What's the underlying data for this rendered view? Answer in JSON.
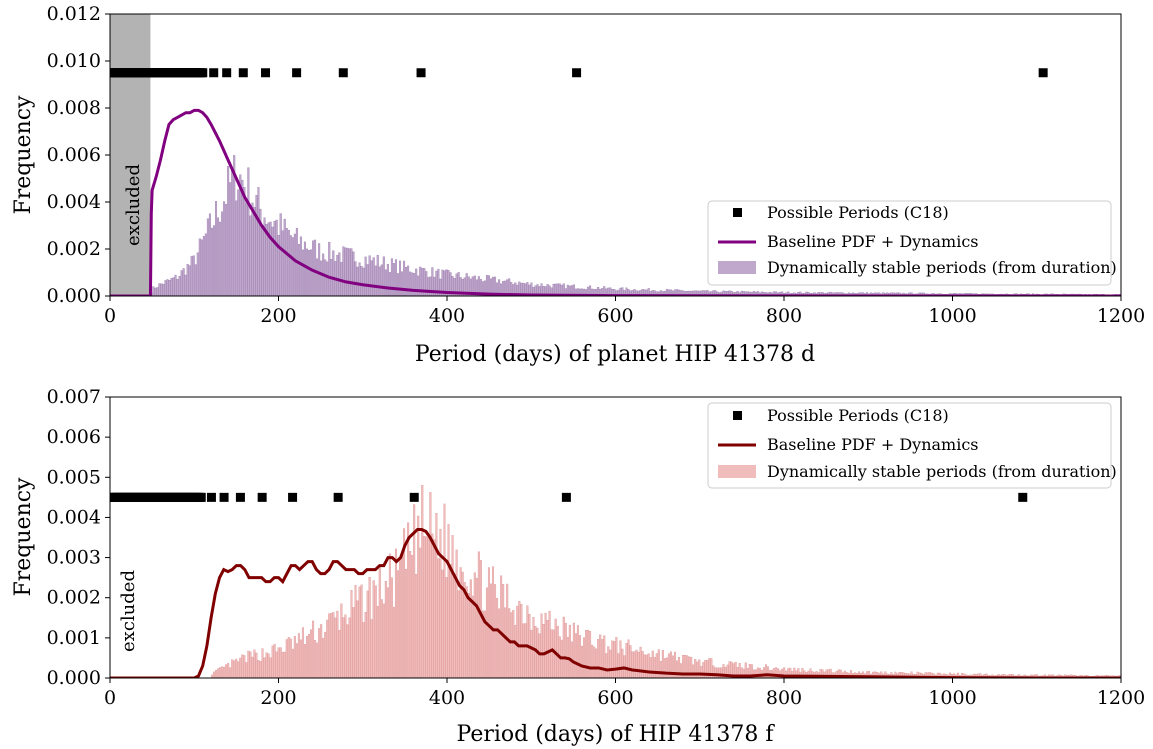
{
  "chart_data": [
    {
      "type": "bar",
      "xlabel": "Period (days) of planet HIP 41378 d",
      "ylabel": "Frequency",
      "xlim": [
        0,
        1200
      ],
      "ylim": [
        0,
        0.012
      ],
      "xticks": [
        0,
        200,
        400,
        600,
        800,
        1000,
        1200
      ],
      "yticks": [
        "0.000",
        "0.002",
        "0.004",
        "0.006",
        "0.008",
        "0.010",
        "0.012"
      ],
      "excluded_region": {
        "x": [
          0,
          48
        ],
        "label": "excluded",
        "color": "#b3b3b3"
      },
      "possible_periods": {
        "label": "Possible Periods (C18)",
        "y": 0.0095,
        "dense_x": [
          1.92,
          3.89,
          5.85,
          7.82,
          9.79,
          11.75,
          13.72,
          15.69,
          17.66,
          19.62,
          21.59,
          23.56,
          25.52,
          27.49,
          29.46,
          31.42,
          33.39,
          35.36,
          37.32,
          39.29,
          41.26,
          43.22,
          45.19,
          47.16,
          49.12,
          51.09,
          53.06,
          55.02,
          56.99,
          58.96,
          60.92,
          62.89,
          64.86,
          66.82,
          68.79,
          70.76,
          72.72,
          74.69,
          76.66,
          78.62,
          80.59,
          82.56,
          84.52,
          86.49,
          88.46,
          90.42,
          92.39,
          94.36,
          96.32,
          98.29,
          100.26,
          102.22,
          104.19,
          106.16,
          108.12,
          110.09
        ],
        "sparse_x": [
          123.1,
          138.5,
          158.2,
          184.6,
          221.5,
          276.9,
          369.2,
          553.8,
          1107.6
        ],
        "color": "#000000"
      },
      "curve": {
        "label": "Baseline PDF + Dynamics",
        "color": "#800080",
        "points": [
          [
            0,
            0
          ],
          [
            48,
            0
          ],
          [
            49,
            0.0035
          ],
          [
            50,
            0.0045
          ],
          [
            55,
            0.0051
          ],
          [
            60,
            0.0058
          ],
          [
            65,
            0.0066
          ],
          [
            70,
            0.0073
          ],
          [
            75,
            0.0075
          ],
          [
            80,
            0.0076
          ],
          [
            85,
            0.0077
          ],
          [
            90,
            0.0078
          ],
          [
            95,
            0.0078
          ],
          [
            100,
            0.0079
          ],
          [
            105,
            0.0079
          ],
          [
            110,
            0.0078
          ],
          [
            115,
            0.0076
          ],
          [
            120,
            0.0073
          ],
          [
            130,
            0.0066
          ],
          [
            140,
            0.0058
          ],
          [
            150,
            0.005
          ],
          [
            160,
            0.0042
          ],
          [
            170,
            0.0036
          ],
          [
            180,
            0.003
          ],
          [
            190,
            0.0025
          ],
          [
            200,
            0.0021
          ],
          [
            220,
            0.0015
          ],
          [
            240,
            0.0011
          ],
          [
            260,
            0.0008
          ],
          [
            280,
            0.0006
          ],
          [
            300,
            0.00048
          ],
          [
            330,
            0.00034
          ],
          [
            360,
            0.00024
          ],
          [
            400,
            0.00015
          ],
          [
            450,
            8e-05
          ],
          [
            500,
            4e-05
          ],
          [
            600,
            1.5e-05
          ],
          [
            800,
            3e-06
          ],
          [
            1200,
            0
          ]
        ]
      },
      "histogram": {
        "label": "Dynamically stable periods (from duration)",
        "color": "#c0a7cc",
        "edge_color": "#8f6fa3",
        "x_start": 48,
        "x_end": 1200,
        "bin_width": 2.4,
        "profile": [
          [
            48,
            0
          ],
          [
            50,
            0.0003
          ],
          [
            60,
            0.0005
          ],
          [
            80,
            0.0008
          ],
          [
            100,
            0.0015
          ],
          [
            120,
            0.003
          ],
          [
            140,
            0.0045
          ],
          [
            150,
            0.0052
          ],
          [
            160,
            0.0048
          ],
          [
            180,
            0.0036
          ],
          [
            200,
            0.003
          ],
          [
            220,
            0.0024
          ],
          [
            250,
            0.0019
          ],
          [
            300,
            0.0016
          ],
          [
            350,
            0.0012
          ],
          [
            400,
            0.0009
          ],
          [
            450,
            0.0007
          ],
          [
            500,
            0.0005
          ],
          [
            600,
            0.0003
          ],
          [
            700,
            0.0002
          ],
          [
            800,
            0.00015
          ],
          [
            1000,
            0.0001
          ],
          [
            1200,
            6e-05
          ]
        ],
        "noise": 0.25
      },
      "legend": {
        "placement": "lower right"
      }
    },
    {
      "type": "bar",
      "xlabel": "Period (days) of HIP 41378 f",
      "ylabel": "Frequency",
      "xlim": [
        0,
        1200
      ],
      "ylim": [
        0,
        0.007
      ],
      "xticks": [
        0,
        200,
        400,
        600,
        800,
        1000,
        1200
      ],
      "yticks": [
        "0.000",
        "0.001",
        "0.002",
        "0.003",
        "0.004",
        "0.005",
        "0.006",
        "0.007"
      ],
      "excluded_label": "excluded",
      "possible_periods": {
        "label": "Possible Periods (C18)",
        "y": 0.0045,
        "dense_x": [
          1.9,
          3.8,
          5.7,
          7.6,
          9.5,
          11.4,
          13.3,
          15.2,
          17.1,
          19.0,
          20.9,
          22.8,
          24.7,
          26.6,
          28.5,
          30.4,
          32.3,
          34.2,
          36.1,
          38.0,
          39.9,
          41.8,
          43.7,
          45.6,
          47.5,
          49.4,
          51.3,
          53.2,
          55.1,
          57.0,
          58.9,
          60.8,
          62.7,
          64.6,
          66.5,
          68.4,
          70.3,
          72.2,
          74.1,
          76.0,
          77.9,
          79.8,
          81.7,
          83.6,
          85.5,
          87.4,
          89.3,
          91.2,
          93.1,
          95.0,
          96.9,
          98.8,
          100.7,
          102.6,
          104.5,
          106.4,
          108.3
        ],
        "sparse_x": [
          120.4,
          135.4,
          154.8,
          180.6,
          216.7,
          270.8,
          361.1,
          541.7,
          1083.4
        ],
        "color": "#000000"
      },
      "curve": {
        "label": "Baseline PDF + Dynamics",
        "color": "#800000",
        "points": [
          [
            0,
            0
          ],
          [
            100,
            0
          ],
          [
            105,
            5e-05
          ],
          [
            110,
            0.0003
          ],
          [
            115,
            0.0008
          ],
          [
            120,
            0.0015
          ],
          [
            125,
            0.0021
          ],
          [
            130,
            0.0025
          ],
          [
            135,
            0.0027
          ],
          [
            140,
            0.00265
          ],
          [
            145,
            0.0027
          ],
          [
            150,
            0.0028
          ],
          [
            155,
            0.0028
          ],
          [
            160,
            0.0027
          ],
          [
            165,
            0.0025
          ],
          [
            170,
            0.0025
          ],
          [
            175,
            0.0025
          ],
          [
            180,
            0.0025
          ],
          [
            185,
            0.0024
          ],
          [
            190,
            0.0024
          ],
          [
            195,
            0.0025
          ],
          [
            200,
            0.0025
          ],
          [
            205,
            0.0024
          ],
          [
            210,
            0.0026
          ],
          [
            215,
            0.0028
          ],
          [
            220,
            0.0028
          ],
          [
            225,
            0.0027
          ],
          [
            230,
            0.0028
          ],
          [
            235,
            0.0029
          ],
          [
            240,
            0.0029
          ],
          [
            245,
            0.0027
          ],
          [
            250,
            0.0026
          ],
          [
            255,
            0.0026
          ],
          [
            260,
            0.0027
          ],
          [
            265,
            0.0029
          ],
          [
            270,
            0.0029
          ],
          [
            275,
            0.0028
          ],
          [
            280,
            0.0027
          ],
          [
            285,
            0.0027
          ],
          [
            290,
            0.0027
          ],
          [
            295,
            0.0026
          ],
          [
            300,
            0.0026
          ],
          [
            305,
            0.0027
          ],
          [
            310,
            0.0027
          ],
          [
            315,
            0.0027
          ],
          [
            320,
            0.0028
          ],
          [
            325,
            0.0028
          ],
          [
            330,
            0.003
          ],
          [
            335,
            0.003
          ],
          [
            340,
            0.0029
          ],
          [
            345,
            0.003
          ],
          [
            350,
            0.0033
          ],
          [
            355,
            0.0035
          ],
          [
            360,
            0.0036
          ],
          [
            365,
            0.0037
          ],
          [
            370,
            0.0037
          ],
          [
            375,
            0.00365
          ],
          [
            380,
            0.0035
          ],
          [
            385,
            0.0033
          ],
          [
            390,
            0.0031
          ],
          [
            395,
            0.003
          ],
          [
            400,
            0.0029
          ],
          [
            405,
            0.0027
          ],
          [
            410,
            0.0025
          ],
          [
            415,
            0.0023
          ],
          [
            420,
            0.0022
          ],
          [
            425,
            0.002
          ],
          [
            430,
            0.0019
          ],
          [
            435,
            0.0018
          ],
          [
            440,
            0.0016
          ],
          [
            445,
            0.0014
          ],
          [
            450,
            0.0013
          ],
          [
            455,
            0.0012
          ],
          [
            460,
            0.0012
          ],
          [
            465,
            0.0011
          ],
          [
            470,
            0.001
          ],
          [
            475,
            0.0009
          ],
          [
            480,
            0.0009
          ],
          [
            485,
            0.0008
          ],
          [
            490,
            0.0008
          ],
          [
            495,
            0.0008
          ],
          [
            500,
            0.00075
          ],
          [
            505,
            0.0007
          ],
          [
            510,
            0.0006
          ],
          [
            515,
            0.0006
          ],
          [
            520,
            0.00065
          ],
          [
            525,
            0.0007
          ],
          [
            530,
            0.0006
          ],
          [
            535,
            0.0005
          ],
          [
            540,
            0.0005
          ],
          [
            545,
            0.00048
          ],
          [
            550,
            0.0004
          ],
          [
            560,
            0.0003
          ],
          [
            570,
            0.00025
          ],
          [
            580,
            0.00025
          ],
          [
            590,
            0.0002
          ],
          [
            600,
            0.00022
          ],
          [
            610,
            0.00025
          ],
          [
            620,
            0.0002
          ],
          [
            640,
            0.00015
          ],
          [
            660,
            0.00012
          ],
          [
            680,
            0.0001
          ],
          [
            700,
            0.0001
          ],
          [
            720,
            8e-05
          ],
          [
            740,
            5e-05
          ],
          [
            760,
            5e-05
          ],
          [
            780,
            8e-05
          ],
          [
            800,
            5e-05
          ],
          [
            850,
            4e-05
          ],
          [
            900,
            3e-05
          ],
          [
            1000,
            1e-05
          ],
          [
            1100,
            0
          ],
          [
            1200,
            0
          ]
        ]
      },
      "histogram": {
        "label": "Dynamically stable periods (from duration)",
        "color": "#f0bcbc",
        "edge_color": "#d98a8a",
        "x_start": 120,
        "x_end": 1200,
        "bin_width": 2.4,
        "profile": [
          [
            120,
            0.0001
          ],
          [
            140,
            0.0003
          ],
          [
            160,
            0.0005
          ],
          [
            200,
            0.0007
          ],
          [
            250,
            0.0012
          ],
          [
            300,
            0.0019
          ],
          [
            340,
            0.0025
          ],
          [
            370,
            0.0037
          ],
          [
            390,
            0.0036
          ],
          [
            410,
            0.0031
          ],
          [
            450,
            0.0022
          ],
          [
            500,
            0.0016
          ],
          [
            550,
            0.0011
          ],
          [
            600,
            0.0008
          ],
          [
            650,
            0.0006
          ],
          [
            700,
            0.0004
          ],
          [
            800,
            0.00022
          ],
          [
            900,
            0.00014
          ],
          [
            1000,
            0.0001
          ],
          [
            1100,
            7e-05
          ],
          [
            1200,
            5e-05
          ]
        ],
        "noise": 0.3
      },
      "legend": {
        "placement": "upper right"
      }
    }
  ]
}
